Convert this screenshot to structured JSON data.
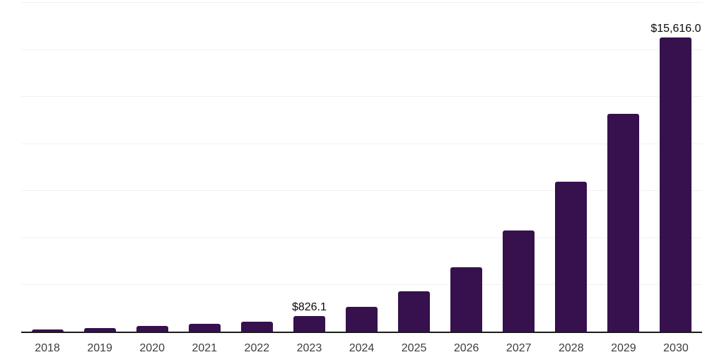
{
  "chart": {
    "background_color": "#ffffff",
    "bar_color": "#36114d",
    "grid_color": "#f1f1f1",
    "axis_color": "#1c1c1c",
    "tick_label_color": "#3d3d3d",
    "data_label_color": "#0a0a0a"
  },
  "chart_data": {
    "type": "bar",
    "title": "",
    "xlabel": "",
    "ylabel": "",
    "categories": [
      "2018",
      "2019",
      "2020",
      "2021",
      "2022",
      "2023",
      "2024",
      "2025",
      "2026",
      "2027",
      "2028",
      "2029",
      "2030"
    ],
    "values": [
      130,
      170,
      300,
      410,
      525,
      826.1,
      1310,
      2140,
      3410,
      5360,
      7980,
      11580,
      15616.0
    ],
    "data_labels": [
      null,
      null,
      null,
      null,
      null,
      "$826.1",
      null,
      null,
      null,
      null,
      null,
      null,
      "$15,616.0"
    ],
    "labeled_points": [
      {
        "category": "2023",
        "label": "$826.1"
      },
      {
        "category": "2030",
        "label": "$15,616.0"
      }
    ],
    "ylim": [
      0,
      17500
    ],
    "gridline_step": 2500,
    "grid": true,
    "legend": false,
    "y_axis_tick_labels_visible": false
  }
}
